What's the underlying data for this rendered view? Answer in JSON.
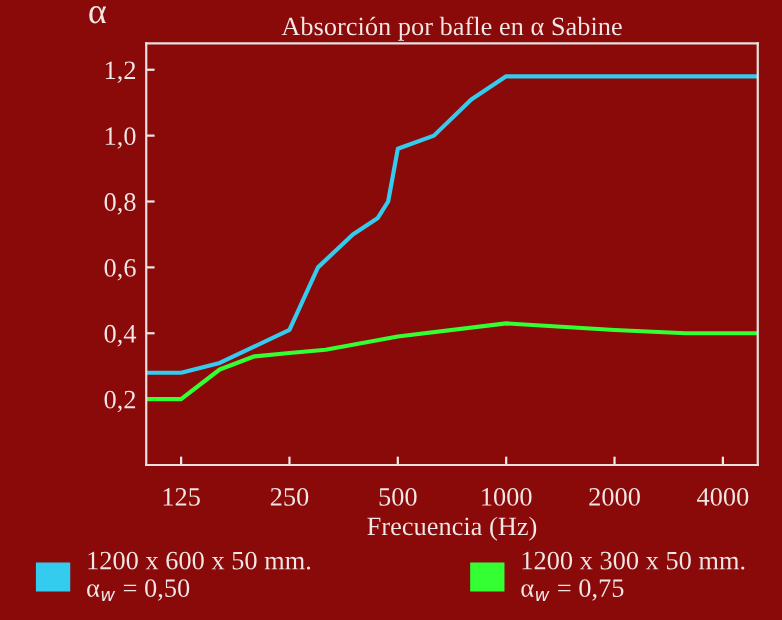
{
  "chart_data": {
    "type": "line",
    "title": "Absorción por bafle en α Sabine",
    "xlabel": "Frecuencia (Hz)",
    "ylabel": "α",
    "log": "x",
    "xlim": [
      100,
      5000
    ],
    "xticks": [
      125,
      250,
      500,
      1000,
      2000,
      4000
    ],
    "ylim": [
      0,
      1.28
    ],
    "yticks": [
      {
        "value": 0.2,
        "label": "0,2"
      },
      {
        "value": 0.4,
        "label": "0,4"
      },
      {
        "value": 0.6,
        "label": "0,6"
      },
      {
        "value": 0.8,
        "label": "0,8"
      },
      {
        "value": 1.0,
        "label": "1,0"
      },
      {
        "value": 1.2,
        "label": "1,2"
      }
    ],
    "grid": false,
    "legend": "bottom",
    "marker": "none",
    "line_style": "solid",
    "series": [
      {
        "name": "1200 x 600 x 50 mm.\nα$_{w}$ = 0,50",
        "color": "#33ccee",
        "x": [
          100,
          125,
          160,
          200,
          250,
          300,
          375,
          440,
          470,
          500,
          630,
          800,
          1000,
          2000,
          4000,
          5000
        ],
        "values": [
          0.28,
          0.28,
          0.31,
          0.36,
          0.41,
          0.6,
          0.7,
          0.75,
          0.8,
          0.96,
          1.0,
          1.11,
          1.18,
          1.18,
          1.18,
          1.18
        ]
      },
      {
        "name": "1200 x 300 x 50 mm.\nα$_{w}$ = 0,75",
        "color": "#33ff33",
        "x": [
          100,
          125,
          160,
          200,
          250,
          315,
          500,
          1000,
          2000,
          3150,
          5000
        ],
        "values": [
          0.2,
          0.2,
          0.29,
          0.33,
          0.34,
          0.35,
          0.39,
          0.43,
          0.41,
          0.4,
          0.4
        ]
      }
    ]
  }
}
